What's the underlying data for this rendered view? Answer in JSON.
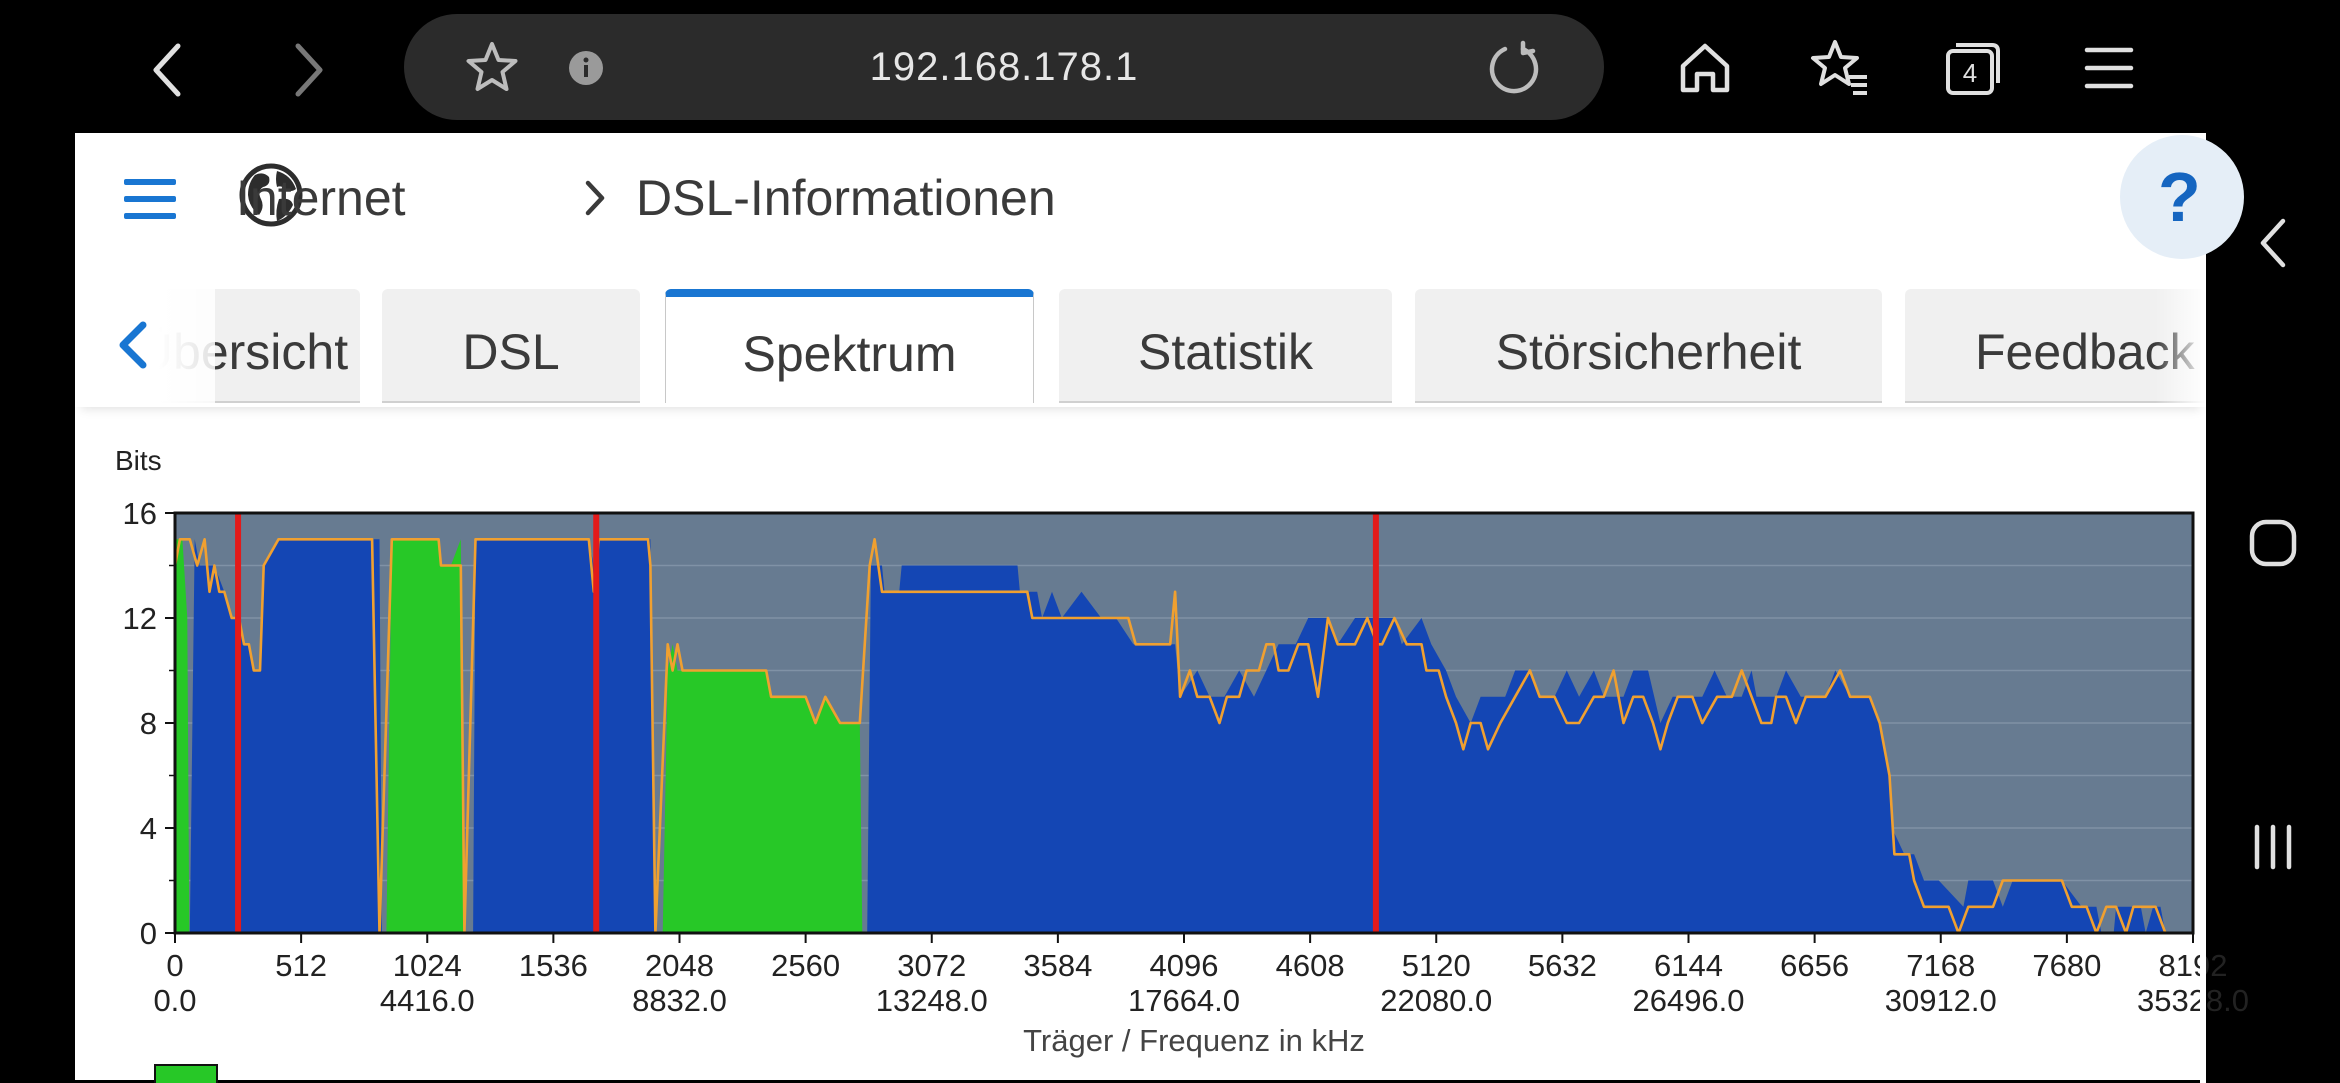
{
  "browser": {
    "url": "192.168.178.1",
    "tab_count": "4"
  },
  "breadcrumb": {
    "section": "Internet",
    "page": "DSL-Informationen"
  },
  "tabs": [
    {
      "label": "Übersicht",
      "visible_text": "Übersicht"
    },
    {
      "label": "DSL"
    },
    {
      "label": "Spektrum",
      "active": true
    },
    {
      "label": "Statistik"
    },
    {
      "label": "Störsicherheit"
    },
    {
      "label": "Feedback"
    }
  ],
  "help_label": "?",
  "colors": {
    "accent": "#1976d2",
    "plot_background": "#677b91",
    "downstream_fill": "#1446b4",
    "upstream_fill": "#27c827",
    "max_line": "#f0a030",
    "marker_line": "#e31a1a"
  },
  "chart_data": {
    "type": "area",
    "ylabel": "Bits",
    "xlabel": "Träger / Frequenz in kHz",
    "ylim": [
      0,
      16
    ],
    "xlim": [
      0,
      8192
    ],
    "y_ticks": [
      "0",
      "4",
      "8",
      "12",
      "16"
    ],
    "x_ticks_carrier": [
      "0",
      "512",
      "1024",
      "1536",
      "2048",
      "2560",
      "3072",
      "3584",
      "4096",
      "4608",
      "5120",
      "5632",
      "6144",
      "6656",
      "7168",
      "7680",
      "8192"
    ],
    "x_ticks_freq": [
      "0.0",
      "4416.0",
      "8832.0",
      "13248.0",
      "17664.0",
      "22080.0",
      "26496.0",
      "30912.0",
      "35328.0"
    ],
    "marker_carriers": [
      256,
      1710,
      4875
    ],
    "series": [
      {
        "kind": "downstream",
        "points": [
          [
            60,
            0
          ],
          [
            80,
            15
          ],
          [
            100,
            14
          ],
          [
            130,
            14
          ],
          [
            160,
            14
          ],
          [
            200,
            13
          ],
          [
            230,
            12
          ],
          [
            260,
            12
          ],
          [
            280,
            11
          ],
          [
            300,
            11
          ],
          [
            320,
            10
          ],
          [
            345,
            10
          ],
          [
            360,
            14
          ],
          [
            420,
            15
          ],
          [
            780,
            15
          ],
          [
            830,
            15
          ],
          [
            840,
            0
          ],
          [
            1210,
            0
          ],
          [
            1220,
            15
          ],
          [
            1680,
            15
          ],
          [
            1700,
            14
          ],
          [
            1720,
            15
          ],
          [
            1930,
            15
          ],
          [
            1950,
            0
          ],
          [
            2810,
            0
          ],
          [
            2825,
            14
          ],
          [
            2870,
            14
          ],
          [
            2880,
            13
          ],
          [
            2940,
            13
          ],
          [
            2950,
            14
          ],
          [
            3420,
            14
          ],
          [
            3430,
            13
          ],
          [
            3500,
            13
          ],
          [
            3520,
            12
          ],
          [
            3560,
            13
          ],
          [
            3600,
            12
          ],
          [
            3680,
            13
          ],
          [
            3760,
            12
          ],
          [
            3820,
            12
          ],
          [
            3890,
            11
          ],
          [
            4000,
            11
          ],
          [
            4060,
            11
          ],
          [
            4080,
            9
          ],
          [
            4150,
            10
          ],
          [
            4200,
            9
          ],
          [
            4260,
            9
          ],
          [
            4320,
            10
          ],
          [
            4380,
            9
          ],
          [
            4430,
            10
          ],
          [
            4480,
            11
          ],
          [
            4550,
            11
          ],
          [
            4600,
            12
          ],
          [
            4680,
            12
          ],
          [
            4720,
            11
          ],
          [
            4790,
            12
          ],
          [
            4900,
            12
          ],
          [
            4950,
            12
          ],
          [
            4980,
            11
          ],
          [
            5060,
            12
          ],
          [
            5100,
            11
          ],
          [
            5160,
            10
          ],
          [
            5200,
            9
          ],
          [
            5260,
            8
          ],
          [
            5300,
            9
          ],
          [
            5400,
            9
          ],
          [
            5440,
            10
          ],
          [
            5500,
            10
          ],
          [
            5540,
            9
          ],
          [
            5600,
            9
          ],
          [
            5650,
            10
          ],
          [
            5700,
            9
          ],
          [
            5760,
            10
          ],
          [
            5800,
            9
          ],
          [
            5880,
            9
          ],
          [
            5920,
            10
          ],
          [
            5980,
            10
          ],
          [
            6030,
            8
          ],
          [
            6080,
            9
          ],
          [
            6200,
            9
          ],
          [
            6250,
            10
          ],
          [
            6300,
            9
          ],
          [
            6360,
            9
          ],
          [
            6400,
            10
          ],
          [
            6420,
            9
          ],
          [
            6500,
            9
          ],
          [
            6540,
            10
          ],
          [
            6600,
            9
          ],
          [
            6700,
            9
          ],
          [
            6740,
            10
          ],
          [
            6800,
            9
          ],
          [
            6880,
            9
          ],
          [
            6920,
            8
          ],
          [
            6960,
            6
          ],
          [
            6970,
            4
          ],
          [
            7020,
            3
          ],
          [
            7060,
            3
          ],
          [
            7100,
            2
          ],
          [
            7160,
            2
          ],
          [
            7260,
            1
          ],
          [
            7280,
            2
          ],
          [
            7380,
            2
          ],
          [
            7420,
            1
          ],
          [
            7460,
            2
          ],
          [
            7560,
            2
          ],
          [
            7660,
            2
          ],
          [
            7740,
            1
          ],
          [
            7800,
            1
          ],
          [
            7820,
            0
          ],
          [
            7870,
            0
          ],
          [
            7880,
            1
          ],
          [
            7980,
            1
          ],
          [
            8000,
            0
          ],
          [
            8030,
            1
          ],
          [
            8060,
            1
          ],
          [
            8080,
            0
          ]
        ]
      },
      {
        "kind": "upstream",
        "points": [
          [
            0,
            0
          ],
          [
            5,
            15
          ],
          [
            30,
            15
          ],
          [
            50,
            12
          ],
          [
            58,
            0
          ],
          [
            858,
            0
          ],
          [
            880,
            15
          ],
          [
            1070,
            15
          ],
          [
            1080,
            14
          ],
          [
            1120,
            14
          ],
          [
            1160,
            15
          ],
          [
            1175,
            0
          ],
          [
            1980,
            0
          ],
          [
            2000,
            10
          ],
          [
            2020,
            11
          ],
          [
            2040,
            10
          ],
          [
            2100,
            10
          ],
          [
            2150,
            10
          ],
          [
            2230,
            10
          ],
          [
            2400,
            10
          ],
          [
            2420,
            9
          ],
          [
            2560,
            9
          ],
          [
            2600,
            8
          ],
          [
            2640,
            9
          ],
          [
            2700,
            8
          ],
          [
            2780,
            8
          ],
          [
            2790,
            0
          ]
        ]
      }
    ],
    "max_line": [
      [
        0,
        14
      ],
      [
        20,
        15
      ],
      [
        60,
        15
      ],
      [
        90,
        14
      ],
      [
        120,
        15
      ],
      [
        140,
        13
      ],
      [
        160,
        14
      ],
      [
        180,
        13
      ],
      [
        200,
        13
      ],
      [
        230,
        12
      ],
      [
        260,
        12
      ],
      [
        280,
        11
      ],
      [
        300,
        11
      ],
      [
        320,
        10
      ],
      [
        345,
        10
      ],
      [
        360,
        14
      ],
      [
        420,
        15
      ],
      [
        800,
        15
      ],
      [
        830,
        0
      ],
      [
        880,
        15
      ],
      [
        1070,
        15
      ],
      [
        1080,
        14
      ],
      [
        1160,
        14
      ],
      [
        1175,
        0
      ],
      [
        1220,
        15
      ],
      [
        1680,
        15
      ],
      [
        1700,
        13
      ],
      [
        1720,
        15
      ],
      [
        1920,
        15
      ],
      [
        1930,
        14
      ],
      [
        1950,
        0
      ],
      [
        2000,
        11
      ],
      [
        2020,
        10
      ],
      [
        2040,
        11
      ],
      [
        2060,
        10
      ],
      [
        2400,
        10
      ],
      [
        2420,
        9
      ],
      [
        2560,
        9
      ],
      [
        2600,
        8
      ],
      [
        2640,
        9
      ],
      [
        2700,
        8
      ],
      [
        2780,
        8
      ],
      [
        2820,
        14
      ],
      [
        2840,
        15
      ],
      [
        2870,
        13
      ],
      [
        3460,
        13
      ],
      [
        3480,
        12
      ],
      [
        3870,
        12
      ],
      [
        3900,
        11
      ],
      [
        4040,
        11
      ],
      [
        4060,
        13
      ],
      [
        4080,
        9
      ],
      [
        4120,
        10
      ],
      [
        4150,
        9
      ],
      [
        4200,
        9
      ],
      [
        4240,
        8
      ],
      [
        4270,
        9
      ],
      [
        4320,
        9
      ],
      [
        4350,
        10
      ],
      [
        4400,
        10
      ],
      [
        4430,
        11
      ],
      [
        4460,
        11
      ],
      [
        4480,
        10
      ],
      [
        4520,
        10
      ],
      [
        4560,
        11
      ],
      [
        4600,
        11
      ],
      [
        4640,
        9
      ],
      [
        4680,
        12
      ],
      [
        4720,
        11
      ],
      [
        4790,
        11
      ],
      [
        4840,
        12
      ],
      [
        4880,
        11
      ],
      [
        4900,
        11
      ],
      [
        4950,
        12
      ],
      [
        5000,
        11
      ],
      [
        5060,
        11
      ],
      [
        5080,
        10
      ],
      [
        5130,
        10
      ],
      [
        5160,
        9
      ],
      [
        5200,
        8
      ],
      [
        5230,
        7
      ],
      [
        5260,
        8
      ],
      [
        5300,
        8
      ],
      [
        5330,
        7
      ],
      [
        5380,
        8
      ],
      [
        5440,
        9
      ],
      [
        5500,
        10
      ],
      [
        5540,
        9
      ],
      [
        5600,
        9
      ],
      [
        5650,
        8
      ],
      [
        5700,
        8
      ],
      [
        5760,
        9
      ],
      [
        5800,
        9
      ],
      [
        5840,
        10
      ],
      [
        5880,
        8
      ],
      [
        5920,
        9
      ],
      [
        5960,
        9
      ],
      [
        6000,
        8
      ],
      [
        6030,
        7
      ],
      [
        6060,
        8
      ],
      [
        6100,
        9
      ],
      [
        6160,
        9
      ],
      [
        6200,
        8
      ],
      [
        6260,
        9
      ],
      [
        6320,
        9
      ],
      [
        6360,
        10
      ],
      [
        6400,
        9
      ],
      [
        6440,
        8
      ],
      [
        6480,
        8
      ],
      [
        6500,
        9
      ],
      [
        6540,
        9
      ],
      [
        6580,
        8
      ],
      [
        6620,
        9
      ],
      [
        6700,
        9
      ],
      [
        6760,
        10
      ],
      [
        6800,
        9
      ],
      [
        6880,
        9
      ],
      [
        6920,
        8
      ],
      [
        6960,
        6
      ],
      [
        6980,
        3
      ],
      [
        7040,
        3
      ],
      [
        7060,
        2
      ],
      [
        7100,
        1
      ],
      [
        7150,
        1
      ],
      [
        7200,
        1
      ],
      [
        7240,
        0
      ],
      [
        7280,
        1
      ],
      [
        7380,
        1
      ],
      [
        7420,
        2
      ],
      [
        7480,
        2
      ],
      [
        7560,
        2
      ],
      [
        7660,
        2
      ],
      [
        7700,
        1
      ],
      [
        7760,
        1
      ],
      [
        7800,
        0
      ],
      [
        7840,
        1
      ],
      [
        7880,
        1
      ],
      [
        7920,
        0
      ],
      [
        7950,
        1
      ],
      [
        8040,
        1
      ],
      [
        8080,
        0
      ]
    ]
  }
}
